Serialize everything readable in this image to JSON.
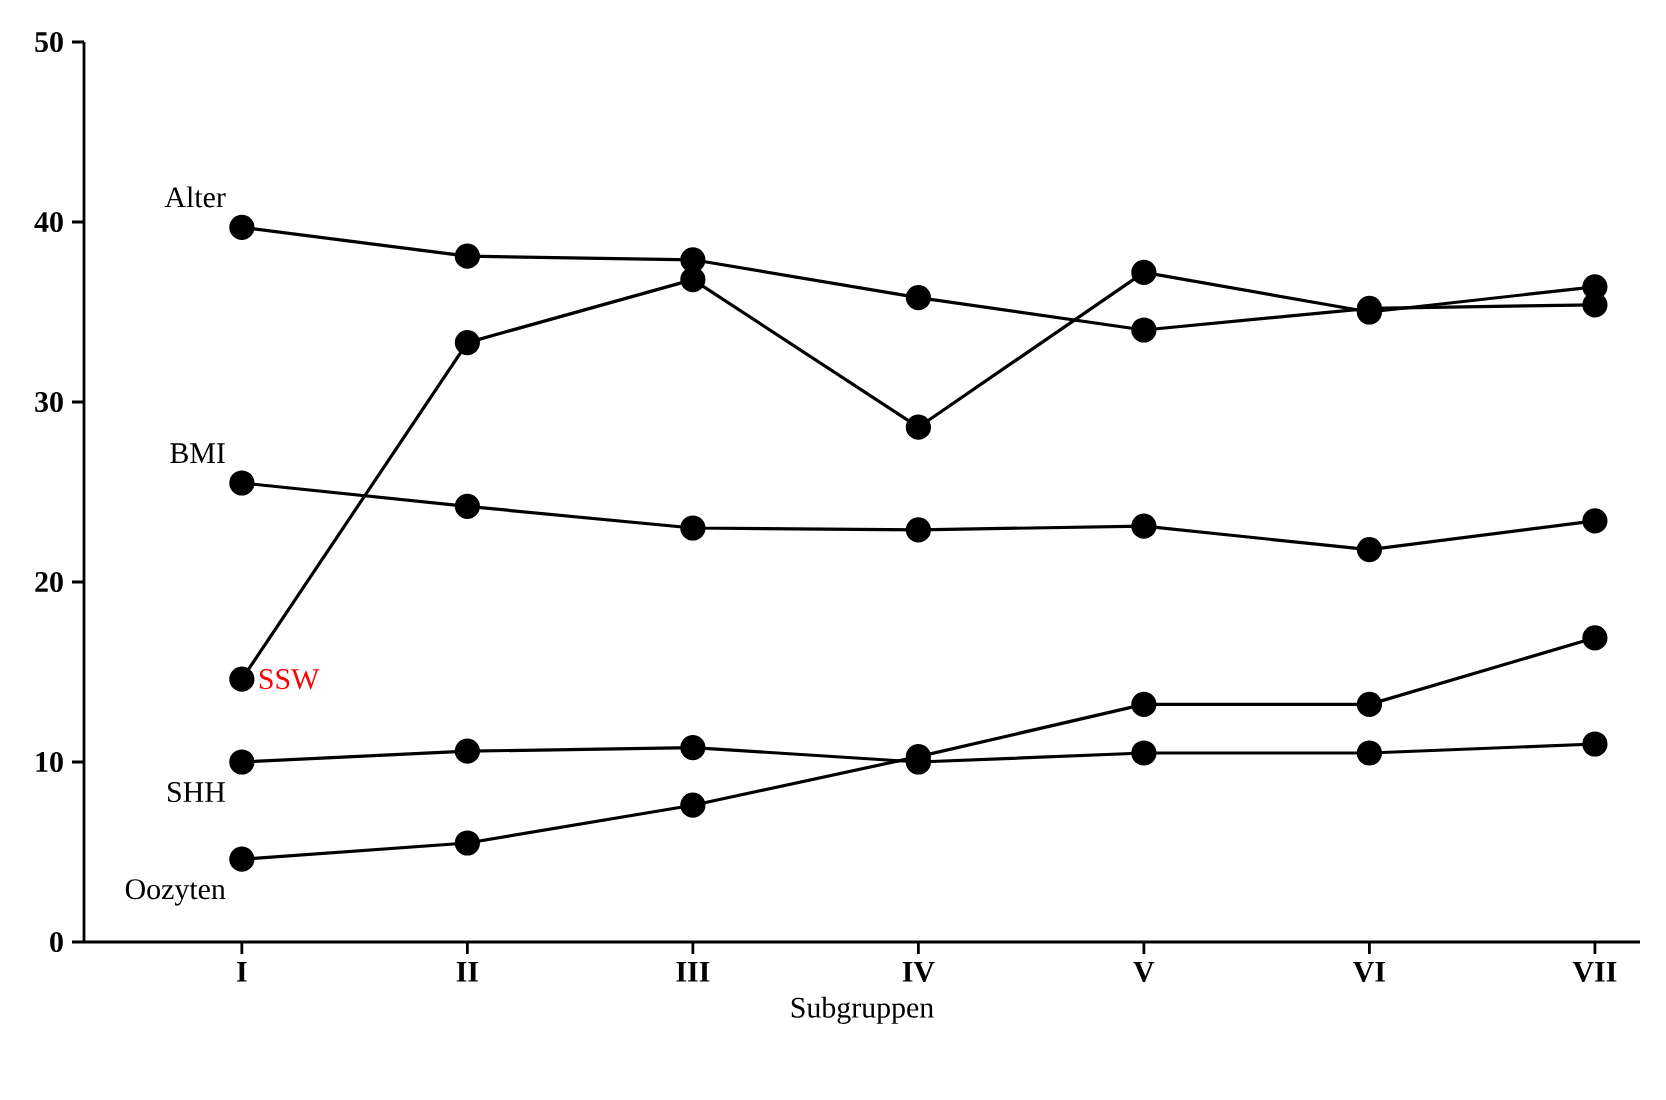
{
  "chart_data": {
    "type": "line",
    "xlabel": "Subgruppen",
    "categories": [
      "I",
      "II",
      "III",
      "IV",
      "V",
      "VI",
      "VII"
    ],
    "ylim": [
      0,
      50
    ],
    "yticks": [
      0,
      10,
      20,
      30,
      40,
      50
    ],
    "marker": "circle",
    "line_style": "solid",
    "grid": false,
    "legend": false,
    "series": [
      {
        "name": "Alter",
        "color": "#000000",
        "values": [
          39.7,
          38.1,
          37.9,
          35.8,
          34.0,
          35.2,
          35.4
        ]
      },
      {
        "name": "SSW",
        "color": "#000000",
        "values": [
          14.6,
          33.3,
          36.8,
          28.6,
          37.2,
          35.0,
          36.4
        ]
      },
      {
        "name": "BMI",
        "color": "#000000",
        "values": [
          25.5,
          24.2,
          23.0,
          22.9,
          23.1,
          21.8,
          23.4
        ]
      },
      {
        "name": "SHH",
        "color": "#000000",
        "values": [
          10.0,
          10.6,
          10.8,
          10.0,
          10.5,
          10.5,
          11.0
        ]
      },
      {
        "name": "Oozyten",
        "color": "#000000",
        "values": [
          4.6,
          5.5,
          7.6,
          10.3,
          13.2,
          13.2,
          16.9
        ]
      }
    ]
  }
}
